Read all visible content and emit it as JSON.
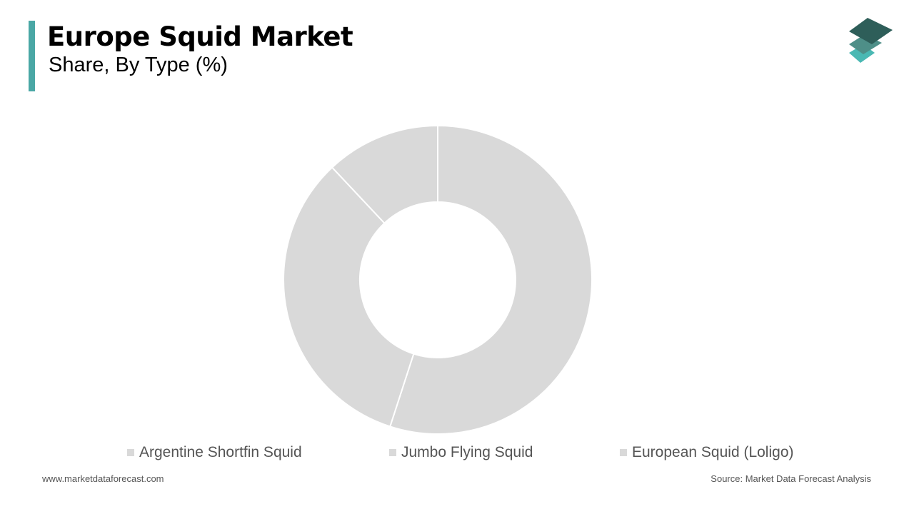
{
  "header": {
    "title": "Europe Squid Market",
    "subtitle": "Share, By Type  (%)"
  },
  "logo": {
    "colors": [
      "#2e5e59",
      "#4e8f88",
      "#4ab8b3"
    ]
  },
  "chart_data": {
    "type": "pie",
    "donut": true,
    "categories": [
      "Argentine Shortfin Squid",
      "Jumbo Flying Squid",
      "European Squid (Loligo)"
    ],
    "values": [
      55,
      33,
      12
    ],
    "colors": [
      "#d9d9d9",
      "#d9d9d9",
      "#d9d9d9"
    ],
    "legend_position": "bottom",
    "data_labels": false
  },
  "footer": {
    "website": "www.marketdataforecast.com",
    "source": "Source: Market Data Forecast Analysis"
  }
}
